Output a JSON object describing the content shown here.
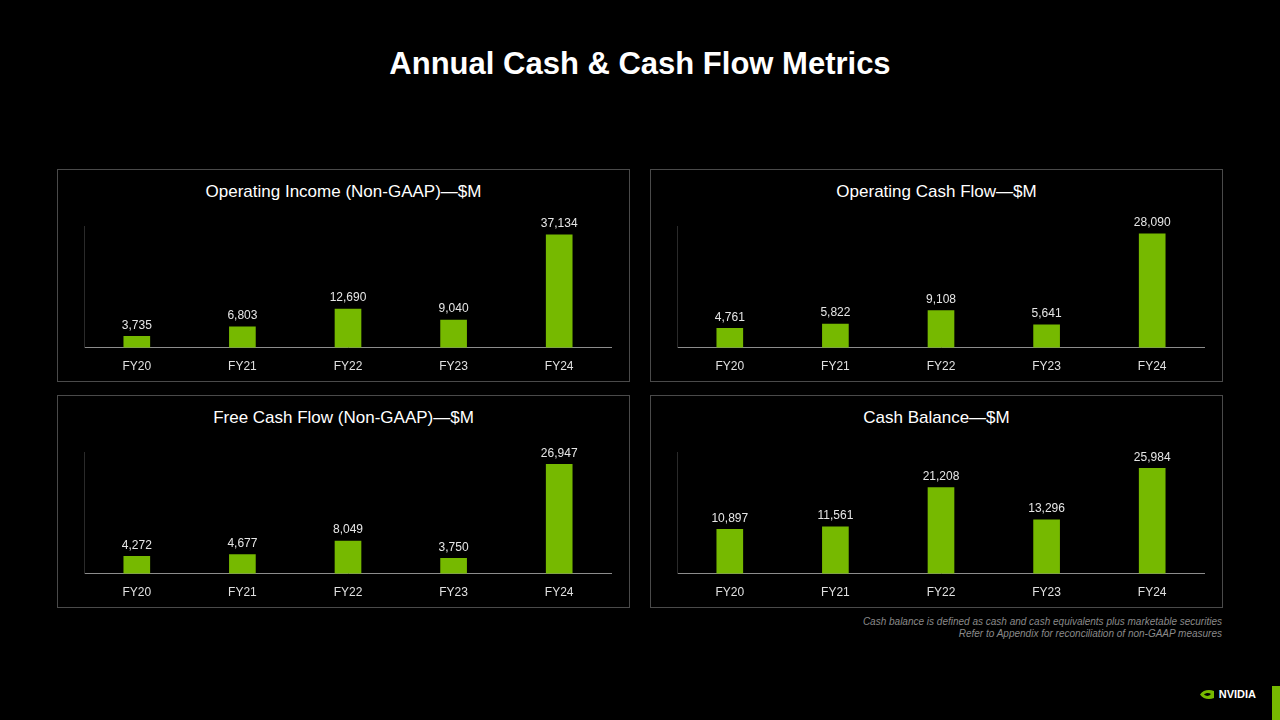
{
  "title": "Annual Cash & Cash Flow Metrics",
  "chart_data": [
    {
      "type": "bar",
      "title": "Operating Income (Non-GAAP)—$M",
      "categories": [
        "FY20",
        "FY21",
        "FY22",
        "FY23",
        "FY24"
      ],
      "values": [
        3735,
        6803,
        12690,
        9040,
        37134
      ],
      "value_labels": [
        "3,735",
        "6,803",
        "12,690",
        "9,040",
        "37,134"
      ],
      "color": "#76b900",
      "ylim": [
        0,
        40000
      ],
      "grid": false,
      "data_labels": true,
      "tick_labels": "x"
    },
    {
      "type": "bar",
      "title": "Operating Cash Flow—$M",
      "categories": [
        "FY20",
        "FY21",
        "FY22",
        "FY23",
        "FY24"
      ],
      "values": [
        4761,
        5822,
        9108,
        5641,
        28090
      ],
      "value_labels": [
        "4,761",
        "5,822",
        "9,108",
        "5,641",
        "28,090"
      ],
      "color": "#76b900",
      "ylim": [
        0,
        30000
      ],
      "grid": false,
      "data_labels": true,
      "tick_labels": "x"
    },
    {
      "type": "bar",
      "title": "Free Cash Flow (Non-GAAP)—$M",
      "categories": [
        "FY20",
        "FY21",
        "FY22",
        "FY23",
        "FY24"
      ],
      "values": [
        4272,
        4677,
        8049,
        3750,
        26947
      ],
      "value_labels": [
        "4,272",
        "4,677",
        "8,049",
        "3,750",
        "26,947"
      ],
      "color": "#76b900",
      "ylim": [
        0,
        30000
      ],
      "grid": false,
      "data_labels": true,
      "tick_labels": "x"
    },
    {
      "type": "bar",
      "title": "Cash Balance—$M",
      "categories": [
        "FY20",
        "FY21",
        "FY22",
        "FY23",
        "FY24"
      ],
      "values": [
        10897,
        11561,
        21208,
        13296,
        25984
      ],
      "value_labels": [
        "10,897",
        "11,561",
        "21,208",
        "13,296",
        "25,984"
      ],
      "color": "#76b900",
      "ylim": [
        0,
        30000
      ],
      "grid": false,
      "data_labels": true,
      "tick_labels": "x"
    }
  ],
  "footnotes": [
    "Cash balance is defined as cash and cash equivalents plus marketable securities",
    "Refer to Appendix for reconciliation of non-GAAP measures"
  ],
  "logo": "NVIDIA"
}
